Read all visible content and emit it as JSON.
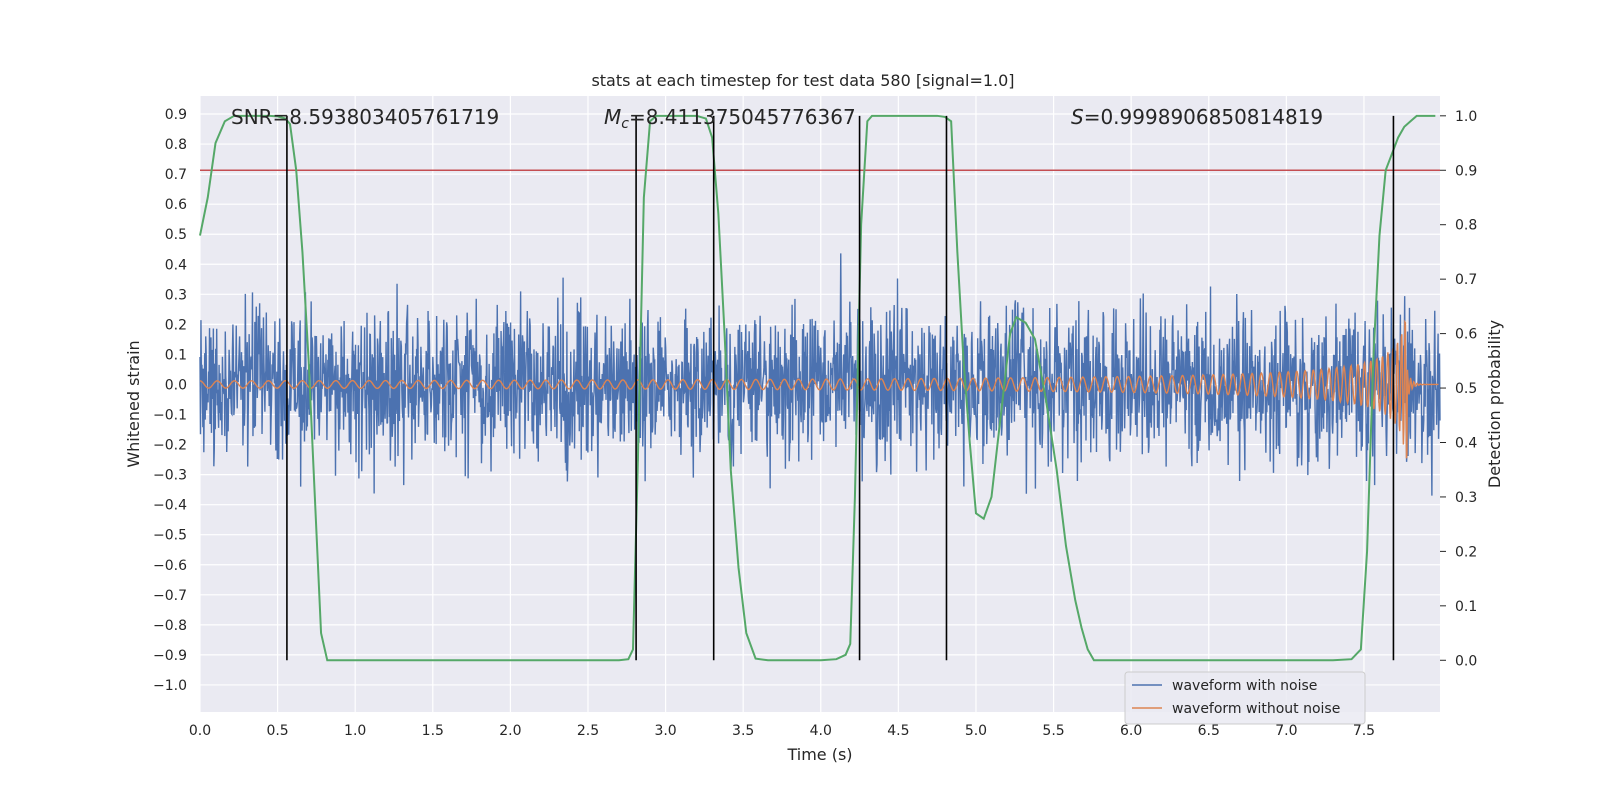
{
  "chart_data": {
    "type": "line",
    "title": "stats at each timestep for test data 580 [signal=1.0]",
    "xlabel": "Time (s)",
    "ylabel_left": "Whitened strain",
    "ylabel_right": "Detection probability",
    "xlim": [
      0.0,
      7.99
    ],
    "ylim_left": [
      -1.09,
      0.96
    ],
    "ylim_right": [
      -0.095,
      1.0364
    ],
    "x_ticks": [
      "0.0",
      "0.5",
      "1.0",
      "1.5",
      "2.0",
      "2.5",
      "3.0",
      "3.5",
      "4.0",
      "4.5",
      "5.0",
      "5.5",
      "6.0",
      "6.5",
      "7.0",
      "7.5"
    ],
    "y_ticks_left": [
      "−1.0",
      "−0.9",
      "−0.8",
      "−0.7",
      "−0.6",
      "−0.5",
      "−0.4",
      "−0.3",
      "−0.2",
      "−0.1",
      "0.0",
      "0.1",
      "0.2",
      "0.3",
      "0.4",
      "0.5",
      "0.6",
      "0.7",
      "0.8",
      "0.9"
    ],
    "y_ticks_right": [
      "0.0",
      "0.1",
      "0.2",
      "0.3",
      "0.4",
      "0.5",
      "0.6",
      "0.7",
      "0.8",
      "0.9",
      "1.0"
    ],
    "grid": true,
    "annotations": {
      "snr": "SNR=8.593803405761719",
      "mc_sym": "M",
      "mc_sub": "c",
      "mc_val": "=8.411375045776367",
      "s_sym": "S",
      "s_val": "=0.9998906850814819"
    },
    "threshold": {
      "value": 0.9,
      "axis": "right",
      "color": "#c44e52"
    },
    "vertical_lines": [
      0.56,
      2.81,
      3.31,
      4.25,
      4.81,
      7.69
    ],
    "detection_probability": {
      "name": "Detection probability",
      "color": "#55a868",
      "x": [
        0.0,
        0.05,
        0.1,
        0.16,
        0.22,
        0.3,
        0.38,
        0.45,
        0.5,
        0.55,
        0.58,
        0.62,
        0.66,
        0.7,
        0.74,
        0.78,
        0.82,
        0.9,
        1.2,
        1.8,
        2.4,
        2.7,
        2.76,
        2.79,
        2.82,
        2.86,
        2.9,
        2.94,
        3.0,
        3.1,
        3.2,
        3.26,
        3.3,
        3.34,
        3.38,
        3.42,
        3.47,
        3.52,
        3.58,
        3.66,
        3.8,
        4.0,
        4.1,
        4.16,
        4.19,
        4.22,
        4.26,
        4.3,
        4.33,
        4.37,
        4.45,
        4.6,
        4.75,
        4.8,
        4.84,
        4.88,
        4.92,
        4.96,
        5.0,
        5.05,
        5.1,
        5.16,
        5.22,
        5.26,
        5.32,
        5.38,
        5.45,
        5.52,
        5.58,
        5.64,
        5.68,
        5.72,
        5.76,
        5.82,
        5.9,
        6.2,
        6.6,
        7.0,
        7.3,
        7.42,
        7.48,
        7.52,
        7.56,
        7.6,
        7.64,
        7.68,
        7.72,
        7.76,
        7.8,
        7.84,
        7.88,
        7.92,
        7.96
      ],
      "y": [
        0.78,
        0.85,
        0.95,
        0.99,
        1.0,
        1.0,
        1.0,
        1.0,
        0.999,
        0.995,
        0.985,
        0.9,
        0.75,
        0.55,
        0.3,
        0.05,
        0.0,
        0.0,
        0.0,
        0.0,
        0.0,
        0.0,
        0.002,
        0.02,
        0.35,
        0.85,
        0.99,
        1.0,
        1.0,
        1.0,
        1.0,
        0.995,
        0.96,
        0.82,
        0.6,
        0.35,
        0.17,
        0.05,
        0.003,
        0.0,
        0.0,
        0.0,
        0.002,
        0.01,
        0.03,
        0.3,
        0.8,
        0.99,
        1.0,
        1.0,
        1.0,
        1.0,
        1.0,
        0.998,
        0.99,
        0.75,
        0.55,
        0.4,
        0.27,
        0.26,
        0.3,
        0.45,
        0.6,
        0.63,
        0.62,
        0.59,
        0.48,
        0.35,
        0.21,
        0.11,
        0.06,
        0.02,
        0.0,
        0.0,
        0.0,
        0.0,
        0.0,
        0.0,
        0.0,
        0.002,
        0.02,
        0.2,
        0.55,
        0.78,
        0.9,
        0.93,
        0.96,
        0.98,
        0.99,
        1.0,
        1.0,
        1.0,
        1.0
      ]
    },
    "series": [
      {
        "name": "waveform with noise",
        "color": "#4c72b0"
      },
      {
        "name": "waveform without noise",
        "color": "#dd8452"
      }
    ],
    "legend_position": "lower-right"
  }
}
